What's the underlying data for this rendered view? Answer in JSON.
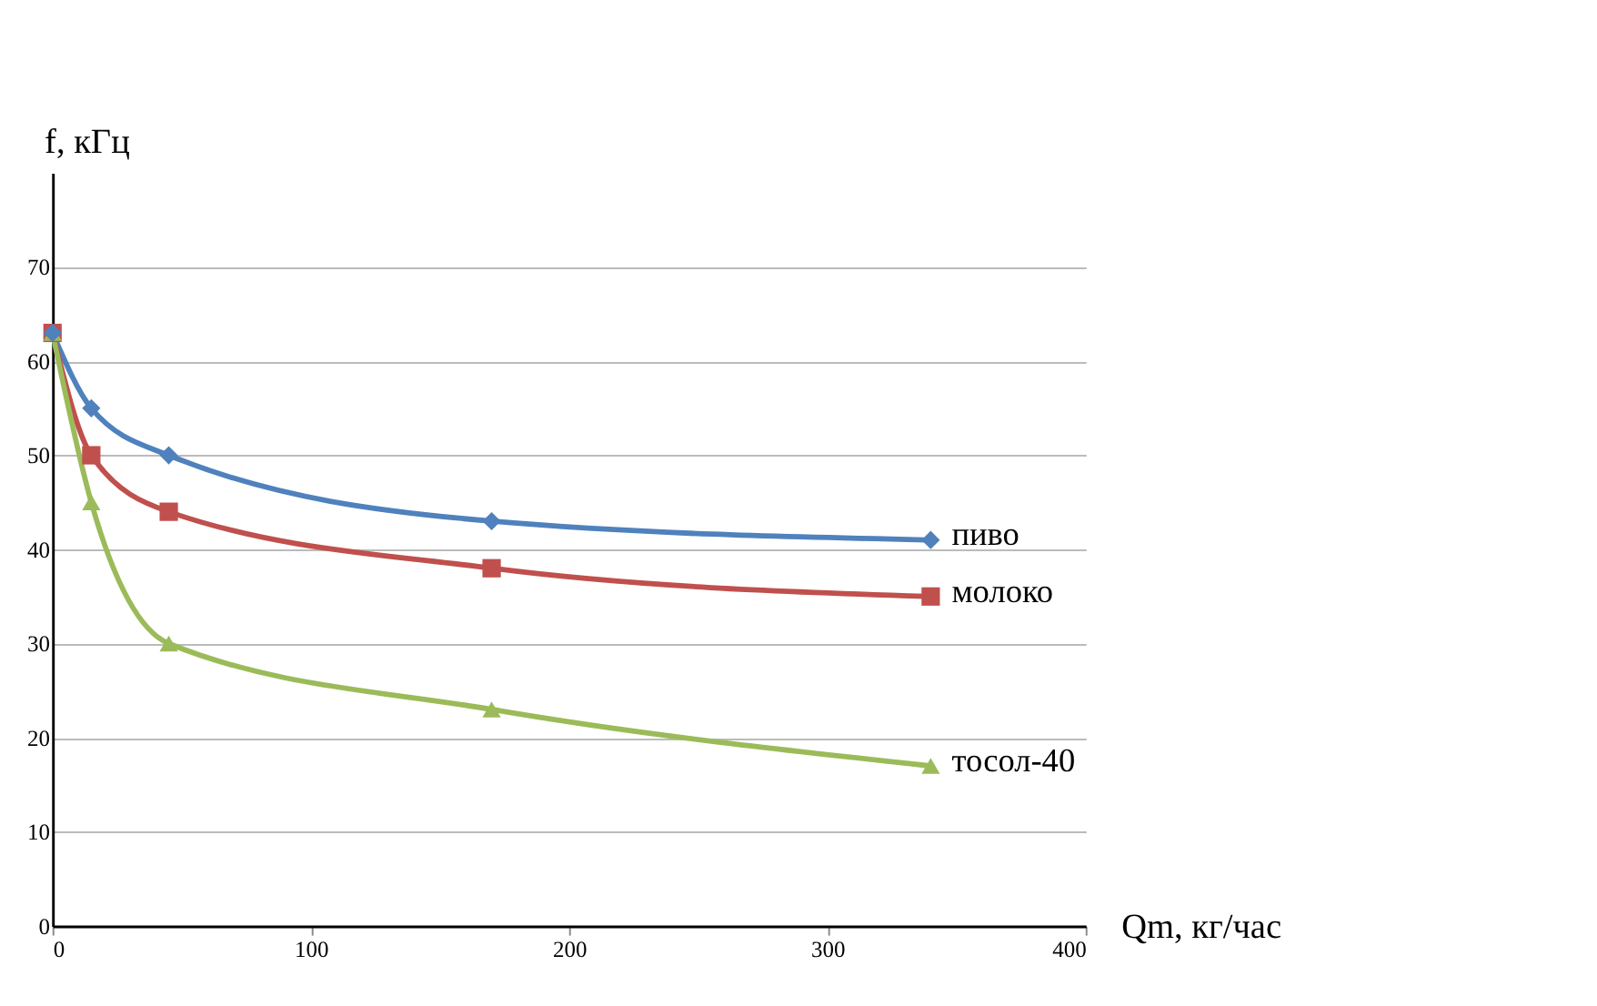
{
  "chart_data": {
    "type": "line",
    "xlabel": "Qm, кг/час",
    "ylabel": "f, кГц",
    "xlim": [
      0,
      400
    ],
    "xticks": [
      0,
      100,
      200,
      300,
      400
    ],
    "ylim": [
      0,
      80
    ],
    "yticks": [
      0,
      10,
      20,
      30,
      40,
      50,
      60,
      70
    ],
    "grid": "y",
    "legend": false,
    "line_style": "solid",
    "x": [
      0,
      15,
      45,
      170,
      340
    ],
    "series": [
      {
        "name": "пиво",
        "color": "#4f81bd",
        "marker": "diamond",
        "values": [
          63,
          55,
          50,
          43,
          41
        ]
      },
      {
        "name": "молоко",
        "color": "#c0504d",
        "marker": "square",
        "values": [
          63,
          50,
          44,
          38,
          35
        ]
      },
      {
        "name": "тосол-40",
        "color": "#9bbb59",
        "marker": "triangle",
        "values": [
          63,
          45,
          30,
          23,
          17
        ]
      }
    ]
  }
}
